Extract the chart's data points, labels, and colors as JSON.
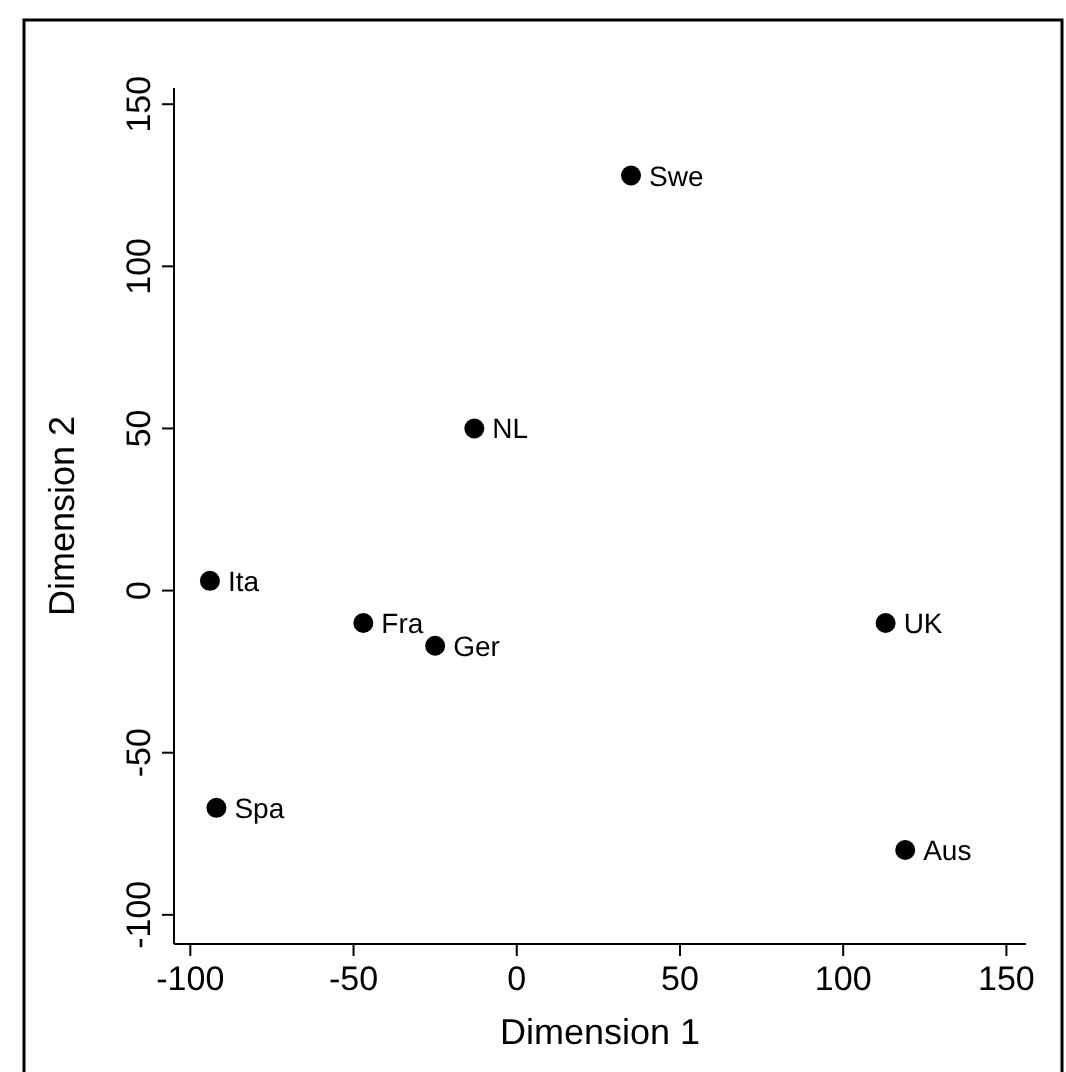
{
  "chart_data": {
    "type": "scatter",
    "xlabel": "Dimension 1",
    "ylabel": "Dimension 2",
    "x": [
      35,
      -13,
      -94,
      -47,
      -25,
      113,
      -92,
      119
    ],
    "values": [
      128,
      50,
      3,
      -10,
      -17,
      -10,
      -67,
      -80
    ],
    "color": "#000000",
    "marker": "circle",
    "grid": false,
    "xlim": [
      -105,
      156
    ],
    "ylim": [
      -109,
      155
    ],
    "xticks": [
      -100,
      -50,
      0,
      50,
      100,
      150
    ],
    "yticks": [
      -100,
      -50,
      0,
      50,
      100,
      150
    ],
    "annotations": [
      {
        "text": "Swe",
        "x": 35,
        "y": 128
      },
      {
        "text": "NL",
        "x": -13,
        "y": 50
      },
      {
        "text": "Ita",
        "x": -94,
        "y": 3
      },
      {
        "text": "Fra",
        "x": -47,
        "y": -10
      },
      {
        "text": "Ger",
        "x": -25,
        "y": -17
      },
      {
        "text": "UK",
        "x": 113,
        "y": -10
      },
      {
        "text": "Spa",
        "x": -92,
        "y": -67
      },
      {
        "text": "Aus",
        "x": 119,
        "y": -80
      }
    ]
  }
}
